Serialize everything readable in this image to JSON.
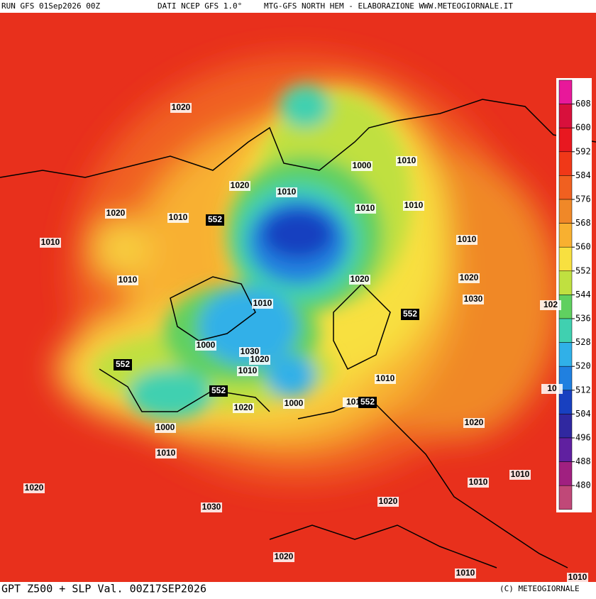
{
  "header": {
    "run": "RUN GFS 01Sep2026 00Z",
    "source": "DATI NCEP GFS 1.0°",
    "title": "MTG-GFS NORTH HEM - ELABORAZIONE WWW.METEOGIORNALE.IT"
  },
  "footer": {
    "field": "GPT Z500 + SLP Val. 00Z17SEP2026",
    "credit": "(C) METEOGIORNALE"
  },
  "colorbar": {
    "ticks": [
      608,
      600,
      592,
      584,
      576,
      568,
      560,
      552,
      544,
      536,
      528,
      520,
      512,
      504,
      496,
      488,
      480
    ],
    "colors": [
      "#e8189a",
      "#d8103c",
      "#e81820",
      "#f03818",
      "#f06020",
      "#f08828",
      "#f8b030",
      "#f8e040",
      "#c0e040",
      "#60d060",
      "#40d0b0",
      "#30b0e8",
      "#2080e0",
      "#1840c0",
      "#3028a0",
      "#6020a0",
      "#a02080",
      "#c04878"
    ]
  },
  "map": {
    "slp_labels": [
      "1020",
      "1020",
      "1010",
      "1000",
      "1010",
      "1010",
      "1010",
      "1020",
      "1010",
      "1010",
      "1010",
      "1010",
      "1020",
      "1020",
      "1030",
      "102",
      "1010",
      "1000",
      "1030",
      "1020",
      "1010",
      "1010",
      "10",
      "1020",
      "1000",
      "101",
      "1000",
      "1020",
      "1010",
      "1020",
      "1010",
      "1010",
      "1020",
      "1030",
      "1020",
      "1010",
      "1010"
    ],
    "z500_labels": [
      "552",
      "552",
      "552",
      "552",
      "552"
    ]
  }
}
